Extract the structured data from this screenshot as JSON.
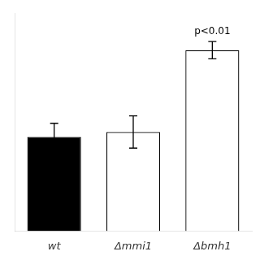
{
  "chart_data": {
    "type": "bar",
    "categories": [
      "wt",
      "Δmmi1",
      "Δbmh1"
    ],
    "values": [
      0.38,
      0.4,
      0.73
    ],
    "errors": [
      0.055,
      0.065,
      0.035
    ],
    "colors": [
      "black",
      "white",
      "white"
    ],
    "annotations": [
      {
        "text": "p<0.01",
        "category": "Δbmh1"
      }
    ],
    "ylim": [
      0,
      0.88
    ],
    "grid": false,
    "tick_labels": "x"
  }
}
